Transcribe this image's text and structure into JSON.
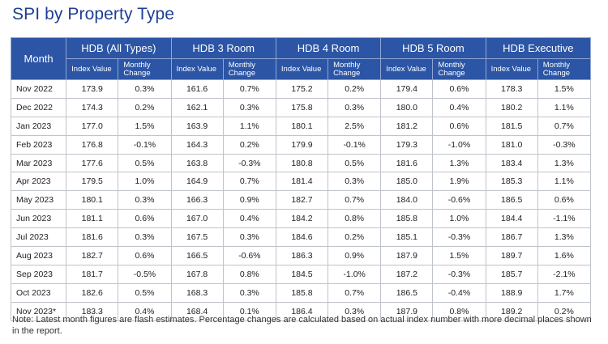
{
  "title": "SPI by Property Type",
  "header": {
    "month_label": "Month",
    "groups": [
      "HDB (All Types)",
      "HDB 3 Room",
      "HDB 4 Room",
      "HDB 5 Room",
      "HDB Executive"
    ],
    "sub_index": "Index Value",
    "sub_change": "Monthly Change"
  },
  "rows": [
    {
      "month": "Nov 2022",
      "cells": [
        "173.9",
        "0.3%",
        "161.6",
        "0.7%",
        "175.2",
        "0.2%",
        "179.4",
        "0.6%",
        "178.3",
        "1.5%"
      ]
    },
    {
      "month": "Dec 2022",
      "cells": [
        "174.3",
        "0.2%",
        "162.1",
        "0.3%",
        "175.8",
        "0.3%",
        "180.0",
        "0.4%",
        "180.2",
        "1.1%"
      ]
    },
    {
      "month": "Jan 2023",
      "cells": [
        "177.0",
        "1.5%",
        "163.9",
        "1.1%",
        "180.1",
        "2.5%",
        "181.2",
        "0.6%",
        "181.5",
        "0.7%"
      ]
    },
    {
      "month": "Feb 2023",
      "cells": [
        "176.8",
        "-0.1%",
        "164.3",
        "0.2%",
        "179.9",
        "-0.1%",
        "179.3",
        "-1.0%",
        "181.0",
        "-0.3%"
      ]
    },
    {
      "month": "Mar 2023",
      "cells": [
        "177.6",
        "0.5%",
        "163.8",
        "-0.3%",
        "180.8",
        "0.5%",
        "181.6",
        "1.3%",
        "183.4",
        "1.3%"
      ]
    },
    {
      "month": "Apr 2023",
      "cells": [
        "179.5",
        "1.0%",
        "164.9",
        "0.7%",
        "181.4",
        "0.3%",
        "185.0",
        "1.9%",
        "185.3",
        "1.1%"
      ]
    },
    {
      "month": "May 2023",
      "cells": [
        "180.1",
        "0.3%",
        "166.3",
        "0.9%",
        "182.7",
        "0.7%",
        "184.0",
        "-0.6%",
        "186.5",
        "0.6%"
      ]
    },
    {
      "month": "Jun 2023",
      "cells": [
        "181.1",
        "0.6%",
        "167.0",
        "0.4%",
        "184.2",
        "0.8%",
        "185.8",
        "1.0%",
        "184.4",
        "-1.1%"
      ]
    },
    {
      "month": "Jul 2023",
      "cells": [
        "181.6",
        "0.3%",
        "167.5",
        "0.3%",
        "184.6",
        "0.2%",
        "185.1",
        "-0.3%",
        "186.7",
        "1.3%"
      ]
    },
    {
      "month": "Aug 2023",
      "cells": [
        "182.7",
        "0.6%",
        "166.5",
        "-0.6%",
        "186.3",
        "0.9%",
        "187.9",
        "1.5%",
        "189.7",
        "1.6%"
      ]
    },
    {
      "month": "Sep 2023",
      "cells": [
        "181.7",
        "-0.5%",
        "167.8",
        "0.8%",
        "184.5",
        "-1.0%",
        "187.2",
        "-0.3%",
        "185.7",
        "-2.1%"
      ]
    },
    {
      "month": "Oct 2023",
      "cells": [
        "182.6",
        "0.5%",
        "168.3",
        "0.3%",
        "185.8",
        "0.7%",
        "186.5",
        "-0.4%",
        "188.9",
        "1.7%"
      ]
    },
    {
      "month": "Nov 2023*",
      "cells": [
        "183.3",
        "0.4%",
        "168.4",
        "0.1%",
        "186.4",
        "0.3%",
        "187.9",
        "0.8%",
        "189.2",
        "0.2%"
      ]
    }
  ],
  "note": "Note: Latest month figures are flash estimates. Percentage changes are calculated based on actual index number with more decimal places shown in the report.",
  "colors": {
    "header_bg": "#2c55a5",
    "title": "#1f3f94",
    "grid": "#bfc3ca"
  }
}
